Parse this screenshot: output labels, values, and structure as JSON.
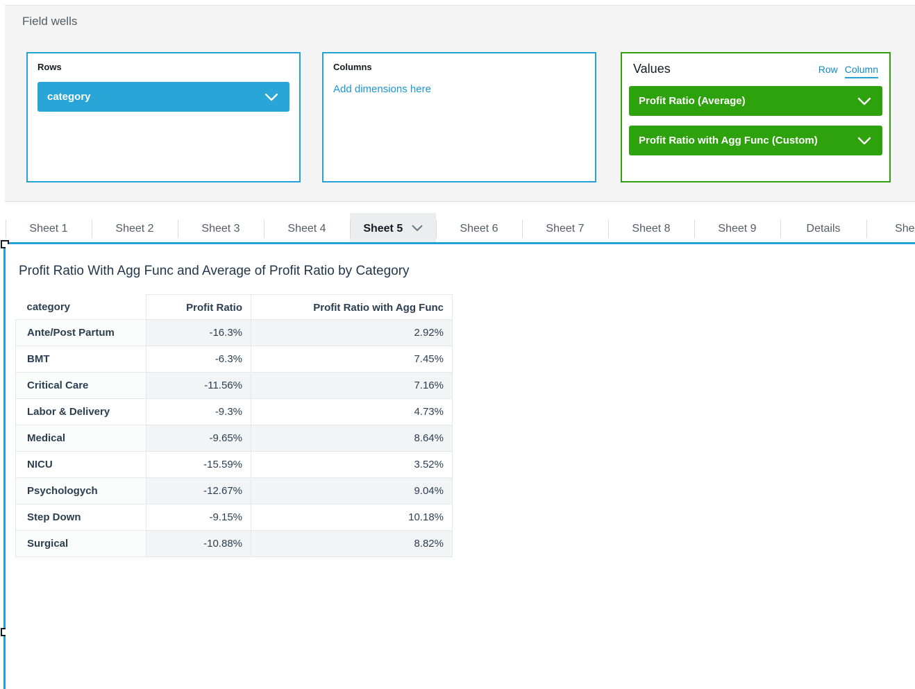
{
  "field_wells": {
    "title": "Field wells",
    "rows_well": {
      "label": "Rows",
      "pill": "category"
    },
    "columns_well": {
      "label": "Columns",
      "placeholder_link": "Add dimensions here"
    },
    "values_well": {
      "label": "Values",
      "row_link": "Row",
      "column_link": "Column",
      "pills": [
        "Profit Ratio (Average)",
        "Profit Ratio with Agg Func (Custom)"
      ]
    }
  },
  "tabs": [
    {
      "label": "Sheet 1",
      "active": false
    },
    {
      "label": "Sheet 2",
      "active": false
    },
    {
      "label": "Sheet 3",
      "active": false
    },
    {
      "label": "Sheet 4",
      "active": false
    },
    {
      "label": "Sheet 5",
      "active": true
    },
    {
      "label": "Sheet 6",
      "active": false
    },
    {
      "label": "Sheet 7",
      "active": false
    },
    {
      "label": "Sheet 8",
      "active": false
    },
    {
      "label": "Sheet 9",
      "active": false
    },
    {
      "label": "Details",
      "active": false
    },
    {
      "label": "Sheet",
      "active": false
    }
  ],
  "sheet": {
    "visual_title": "Profit Ratio With Agg Func and Average of Profit Ratio by Category"
  },
  "chart_data": {
    "type": "table",
    "title": "Profit Ratio With Agg Func and Average of Profit Ratio by Category",
    "columns": [
      "category",
      "Profit Ratio",
      "Profit Ratio with Agg Func"
    ],
    "rows": [
      [
        "Ante/Post Partum",
        "-16.3%",
        "2.92%"
      ],
      [
        "BMT",
        "-6.3%",
        "7.45%"
      ],
      [
        "Critical Care",
        "-11.56%",
        "7.16%"
      ],
      [
        "Labor & Delivery",
        "-9.3%",
        "4.73%"
      ],
      [
        "Medical",
        "-9.65%",
        "8.64%"
      ],
      [
        "NICU",
        "-15.59%",
        "3.52%"
      ],
      [
        "Psychologych",
        "-12.67%",
        "9.04%"
      ],
      [
        "Step Down",
        "-9.15%",
        "10.18%"
      ],
      [
        "Surgical",
        "-10.88%",
        "8.82%"
      ]
    ]
  },
  "colors": {
    "accent_blue": "#23a2d9",
    "pill_blue": "#29a5d8",
    "well_green": "#2da20c",
    "link_blue": "#1a96d5",
    "panel_gray": "#f4f4f4",
    "band_gray": "#f2f4f6",
    "text_dark": "#22374c"
  }
}
